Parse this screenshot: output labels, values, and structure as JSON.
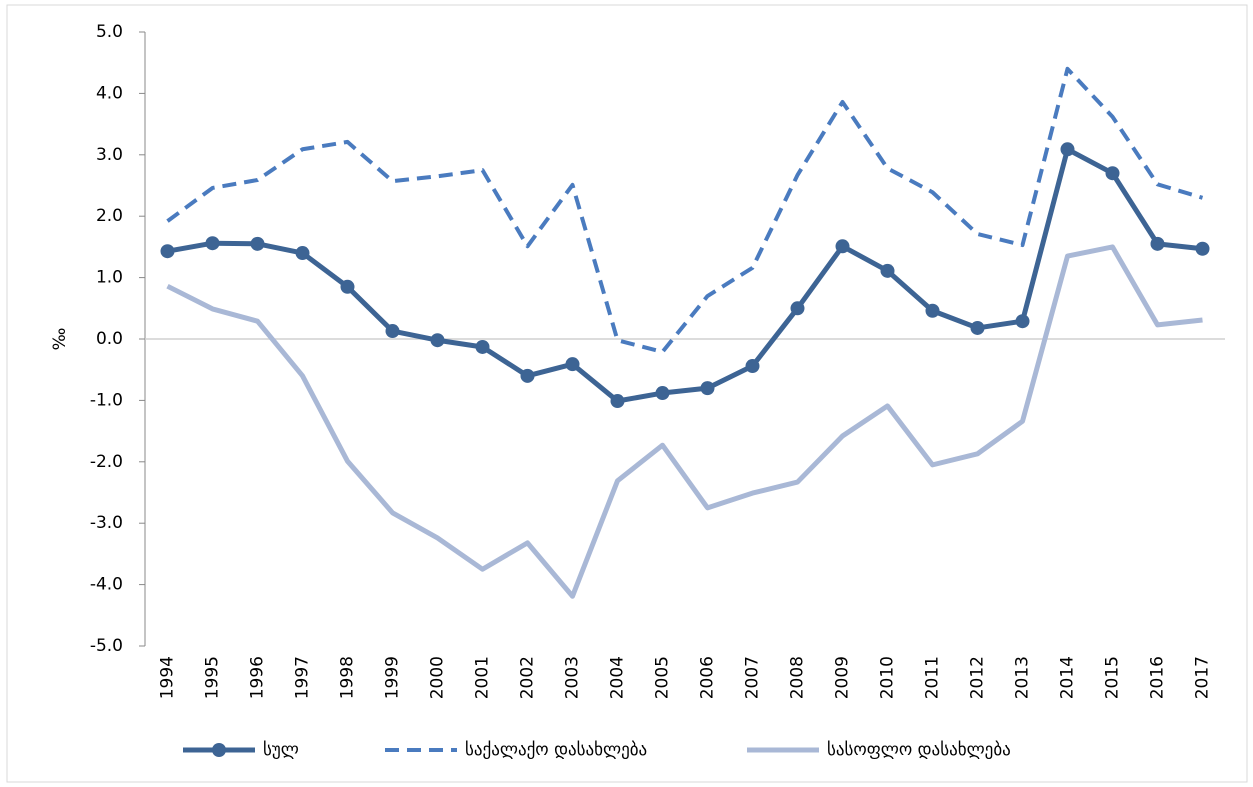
{
  "chart_data": {
    "type": "line",
    "ylabel": "‰",
    "categories": [
      "1994",
      "1995",
      "1996",
      "1997",
      "1998",
      "1999",
      "2000",
      "2001",
      "2002",
      "2003",
      "2004",
      "2005",
      "2006",
      "2007",
      "2008",
      "2009",
      "2010",
      "2011",
      "2012",
      "2013",
      "2014",
      "2015",
      "2016",
      "2017"
    ],
    "series": [
      {
        "name": "სულ",
        "color": "#3d6494",
        "style": "solid",
        "markers": true,
        "values": [
          1.43,
          1.56,
          1.55,
          1.4,
          0.85,
          0.13,
          -0.02,
          -0.13,
          -0.6,
          -0.41,
          -1.01,
          -0.88,
          -0.8,
          -0.44,
          0.5,
          1.51,
          1.11,
          0.46,
          0.18,
          0.29,
          3.09,
          2.7,
          1.55,
          1.47
        ]
      },
      {
        "name": "საქალაქო დასახლება",
        "color": "#4a7bbf",
        "style": "dashed",
        "markers": false,
        "values": [
          1.92,
          2.46,
          2.59,
          3.09,
          3.21,
          2.57,
          2.65,
          2.75,
          1.51,
          2.51,
          -0.02,
          -0.21,
          0.7,
          1.16,
          2.67,
          3.86,
          2.78,
          2.39,
          1.71,
          1.53,
          4.4,
          3.62,
          2.52,
          2.3
        ]
      },
      {
        "name": "სასოფლო დასახლება",
        "color": "#a9b8d6",
        "style": "solid",
        "markers": false,
        "values": [
          0.86,
          0.49,
          0.29,
          -0.6,
          -1.99,
          -2.83,
          -3.24,
          -3.75,
          -3.32,
          -4.19,
          -2.31,
          -1.73,
          -2.75,
          -2.51,
          -2.33,
          -1.58,
          -1.09,
          -2.05,
          -1.87,
          -1.34,
          1.35,
          1.5,
          0.23,
          0.31
        ]
      }
    ],
    "ylim": [
      -5,
      5
    ],
    "yticks": [
      {
        "value": -5,
        "label": "-5.0"
      },
      {
        "value": -4,
        "label": "-4.0"
      },
      {
        "value": -3,
        "label": "-3.0"
      },
      {
        "value": -2,
        "label": "-2.0"
      },
      {
        "value": -1,
        "label": "-1.0"
      },
      {
        "value": 0,
        "label": "0.0"
      },
      {
        "value": 1,
        "label": "1.0"
      },
      {
        "value": 2,
        "label": "2.0"
      },
      {
        "value": 3,
        "label": "3.0"
      },
      {
        "value": 4,
        "label": "4.0"
      },
      {
        "value": 5,
        "label": "5.0"
      }
    ],
    "legend": "bottom"
  }
}
